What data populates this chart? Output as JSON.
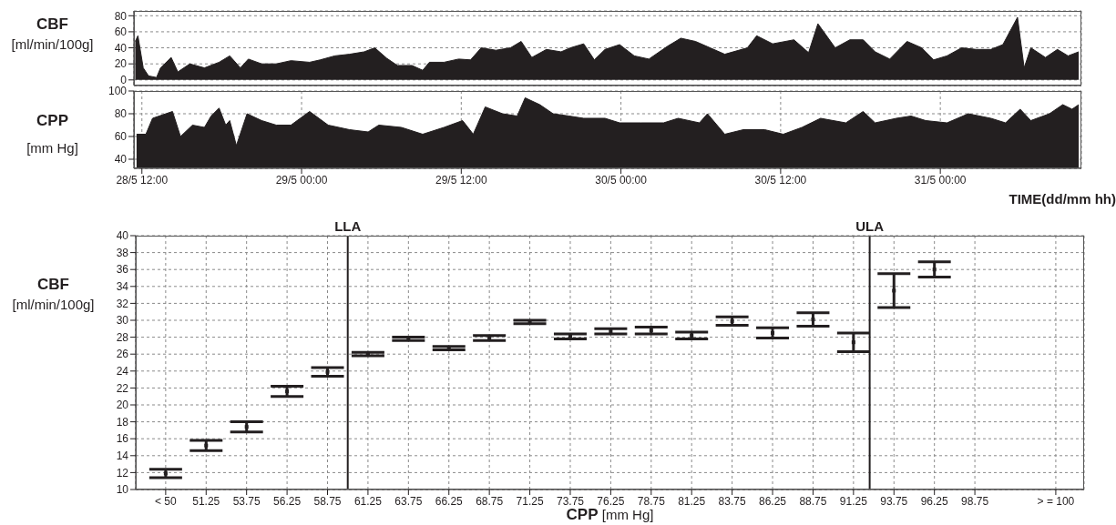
{
  "chart_data": [
    {
      "type": "area",
      "ylabel": "CBF [ml/min/100g]",
      "tick_labels": "y",
      "grid": true,
      "color": "#231f20",
      "xlim": [
        "--05-28T11:24",
        "--05-31T10:36"
      ],
      "xticks": [
        {
          "value": "--05-28T12:00",
          "label": "28/5 12:00"
        },
        {
          "value": "--05-29T00:00",
          "label": "29/5 00:00"
        },
        {
          "value": "--05-29T12:00",
          "label": "29/5 12:00"
        },
        {
          "value": "--05-30T00:00",
          "label": "30/5 00:00"
        },
        {
          "value": "--05-30T12:00",
          "label": "30/5 12:00"
        },
        {
          "value": "--05-31T00:00",
          "label": "31/5 00:00"
        }
      ],
      "ylim": [
        -7,
        86
      ],
      "yticks": [
        0,
        20,
        40,
        60,
        80
      ],
      "x": [
        "--05-28T11:30",
        "--05-28T11:42",
        "--05-28T12:06",
        "--05-28T12:30",
        "--05-28T13:06",
        "--05-28T13:24",
        "--05-28T14:12",
        "--05-28T14:42",
        "--05-28T15:36",
        "--05-28T16:42",
        "--05-28T17:48",
        "--05-28T18:36",
        "--05-28T19:24",
        "--05-28T20:00",
        "--05-28T21:00",
        "--05-28T22:06",
        "--05-28T23:12",
        "--05-29T00:36",
        "--05-29T01:24",
        "--05-29T02:30",
        "--05-29T03:36",
        "--05-29T04:42",
        "--05-29T05:30",
        "--05-29T06:24",
        "--05-29T07:12",
        "--05-29T08:18",
        "--05-29T09:06",
        "--05-29T09:36",
        "--05-29T10:42",
        "--05-29T11:48",
        "--05-29T12:42",
        "--05-29T13:30",
        "--05-29T14:36",
        "--05-29T15:42",
        "--05-29T16:30",
        "--05-29T17:18",
        "--05-29T18:24",
        "--05-29T19:30",
        "--05-29T20:12",
        "--05-29T21:12",
        "--05-29T22:00",
        "--05-29T22:48",
        "--05-29T23:54",
        "--05-30T01:00",
        "--05-30T02:06",
        "--05-30T03:30",
        "--05-30T04:30",
        "--05-30T05:36",
        "--05-30T06:42",
        "--05-30T07:48",
        "--05-30T09:30",
        "--05-30T10:12",
        "--05-30T11:24",
        "--05-30T13:00",
        "--05-30T14:06",
        "--05-30T14:48",
        "--05-30T16:06",
        "--05-30T17:12",
        "--05-30T18:12",
        "--05-30T19:06",
        "--05-30T20:12",
        "--05-30T21:30",
        "--05-30T22:36",
        "--05-30T23:30",
        "--05-31T00:30",
        "--05-31T01:36",
        "--05-31T02:42",
        "--05-31T03:48",
        "--05-31T04:42",
        "--05-31T05:48",
        "--05-31T06:18",
        "--05-31T06:48",
        "--05-31T07:54",
        "--05-31T08:48",
        "--05-31T09:36",
        "--05-31T10:24"
      ],
      "values": [
        48,
        55,
        15,
        5,
        3,
        15,
        28,
        10,
        20,
        15,
        22,
        30,
        15,
        26,
        20,
        20,
        24,
        22,
        25,
        30,
        32,
        35,
        40,
        27,
        18,
        18,
        12,
        22,
        22,
        26,
        25,
        40,
        37,
        40,
        48,
        28,
        38,
        35,
        40,
        45,
        25,
        38,
        44,
        30,
        26,
        42,
        52,
        48,
        40,
        32,
        40,
        55,
        45,
        50,
        34,
        70,
        40,
        50,
        50,
        35,
        26,
        48,
        40,
        25,
        30,
        40,
        38,
        38,
        44,
        78,
        15,
        40,
        28,
        38,
        30,
        35
      ]
    },
    {
      "type": "area",
      "ylabel": "CPP [mm Hg]",
      "xlabel": "TIME(dd/mm hh)",
      "grid": true,
      "color": "#231f20",
      "xlim": [
        "--05-28T11:24",
        "--05-31T10:36"
      ],
      "xticks": [
        {
          "value": "--05-28T12:00",
          "label": "28/5 12:00"
        },
        {
          "value": "--05-29T00:00",
          "label": "29/5 00:00"
        },
        {
          "value": "--05-29T12:00",
          "label": "29/5 12:00"
        },
        {
          "value": "--05-30T00:00",
          "label": "30/5 00:00"
        },
        {
          "value": "--05-30T12:00",
          "label": "30/5 12:00"
        },
        {
          "value": "--05-31T00:00",
          "label": "31/5 00:00"
        }
      ],
      "ylim": [
        32,
        100
      ],
      "yticks": [
        40,
        60,
        80,
        100
      ],
      "x": [
        "--05-28T11:36",
        "--05-28T12:18",
        "--05-28T12:48",
        "--05-28T14:18",
        "--05-28T14:54",
        "--05-28T15:48",
        "--05-28T16:42",
        "--05-28T17:12",
        "--05-28T17:48",
        "--05-28T18:18",
        "--05-28T18:36",
        "--05-28T19:06",
        "--05-28T19:54",
        "--05-28T21:00",
        "--05-28T22:06",
        "--05-28T23:12",
        "--05-29T00:36",
        "--05-29T02:00",
        "--05-29T03:36",
        "--05-29T05:00",
        "--05-29T05:48",
        "--05-29T07:30",
        "--05-29T09:06",
        "--05-29T10:42",
        "--05-29T12:06",
        "--05-29T12:54",
        "--05-29T13:48",
        "--05-29T15:06",
        "--05-29T16:12",
        "--05-29T16:48",
        "--05-29T17:54",
        "--05-29T18:54",
        "--05-29T20:06",
        "--05-29T21:12",
        "--05-29T22:48",
        "--05-29T23:54",
        "--05-30T01:30",
        "--05-30T03:12",
        "--05-30T04:18",
        "--05-30T05:54",
        "--05-30T06:30",
        "--05-30T07:48",
        "--05-30T09:12",
        "--05-30T10:48",
        "--05-30T12:12",
        "--05-30T13:36",
        "--05-30T15:00",
        "--05-30T16:54",
        "--05-30T18:12",
        "--05-30T19:06",
        "--05-30T20:42",
        "--05-30T21:48",
        "--05-30T22:54",
        "--05-31T00:30",
        "--05-31T02:06",
        "--05-31T03:48",
        "--05-31T04:54",
        "--05-31T06:00",
        "--05-31T06:48",
        "--05-31T08:12",
        "--05-31T09:12",
        "--05-31T09:54",
        "--05-31T10:24"
      ],
      "values": [
        62,
        62,
        76,
        82,
        60,
        70,
        68,
        78,
        85,
        70,
        74,
        52,
        80,
        74,
        70,
        70,
        82,
        70,
        66,
        64,
        70,
        68,
        62,
        68,
        74,
        62,
        86,
        80,
        78,
        94,
        88,
        80,
        78,
        76,
        76,
        72,
        72,
        72,
        76,
        72,
        80,
        62,
        66,
        66,
        62,
        68,
        76,
        72,
        82,
        72,
        76,
        78,
        74,
        72,
        80,
        76,
        72,
        84,
        74,
        80,
        88,
        84,
        88
      ]
    },
    {
      "type": "scatter",
      "marker": "square",
      "ylabel": "CBF [ml/min/100g]",
      "xlabel": "CPP [mm Hg]",
      "grid": true,
      "color": "#231f20",
      "xlim": [
        46.9,
        105.5
      ],
      "xticks": [
        {
          "value": 48.75,
          "label": "< 50"
        },
        51.25,
        53.75,
        56.25,
        58.75,
        61.25,
        63.75,
        66.25,
        68.75,
        71.25,
        73.75,
        76.25,
        78.75,
        81.25,
        83.75,
        86.25,
        88.75,
        91.25,
        93.75,
        96.25,
        98.75,
        {
          "value": 103.75,
          "label": "> = 100"
        }
      ],
      "ylim": [
        10,
        40
      ],
      "yticks": [
        10,
        12,
        14,
        16,
        18,
        20,
        22,
        24,
        26,
        28,
        30,
        32,
        34,
        36,
        38,
        40
      ],
      "x": [
        48.75,
        51.25,
        53.75,
        56.25,
        58.75,
        61.25,
        63.75,
        66.25,
        68.75,
        71.25,
        73.75,
        76.25,
        78.75,
        81.25,
        83.75,
        86.25,
        88.75,
        91.25,
        93.75,
        96.25
      ],
      "values": [
        11.9,
        15.2,
        17.4,
        21.6,
        23.9,
        26.0,
        27.8,
        26.7,
        27.9,
        29.8,
        28.1,
        28.7,
        28.8,
        28.2,
        29.9,
        28.5,
        30.1,
        27.4,
        33.5,
        36.0
      ],
      "errors": [
        0.5,
        0.6,
        0.6,
        0.6,
        0.5,
        0.2,
        0.2,
        0.2,
        0.3,
        0.2,
        0.3,
        0.3,
        0.4,
        0.4,
        0.5,
        0.6,
        0.8,
        1.1,
        2.0,
        0.9
      ],
      "ref_lines": [
        {
          "axis": "x",
          "value": 60,
          "label": "LLA"
        },
        {
          "axis": "x",
          "value": 92.25,
          "label": "ULA"
        }
      ]
    }
  ]
}
